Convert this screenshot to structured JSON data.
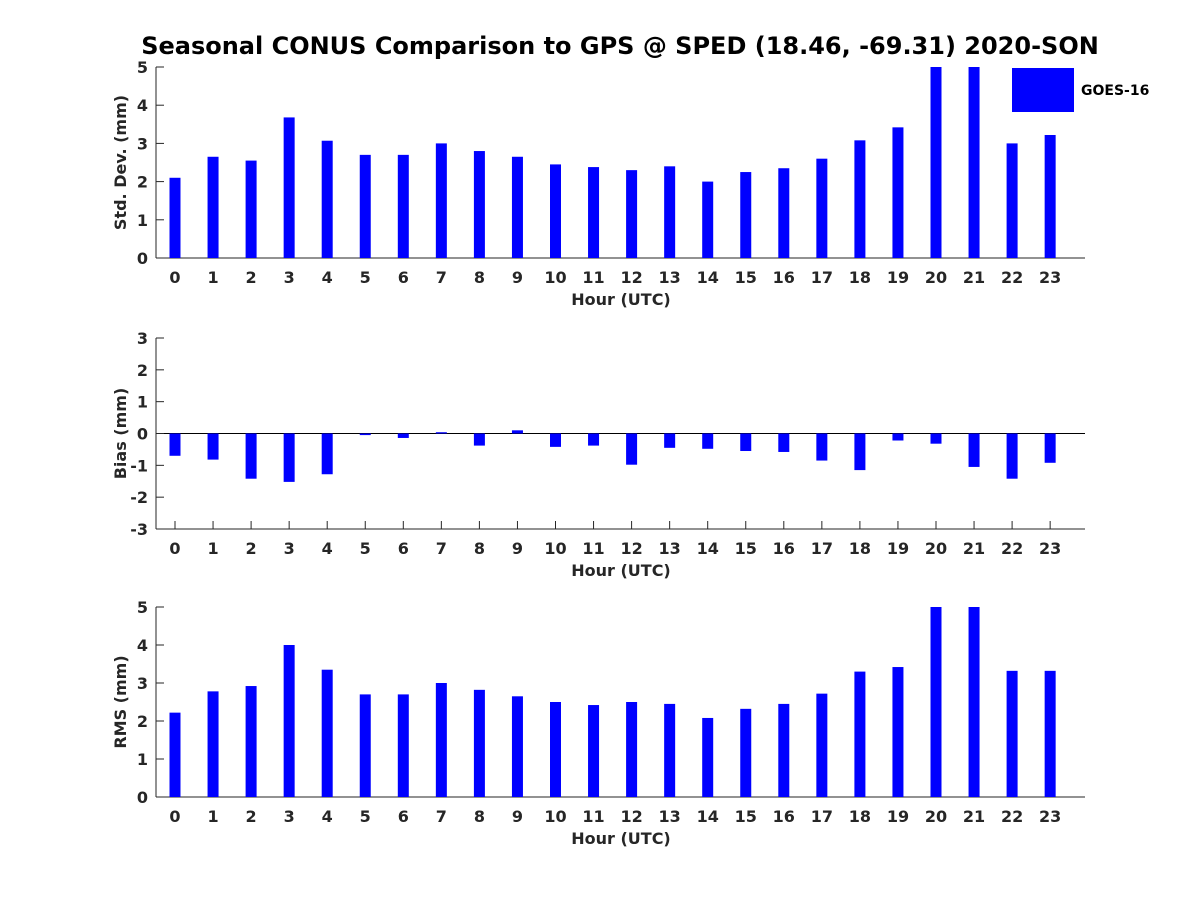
{
  "figure": {
    "title": "Seasonal CONUS Comparison to GPS @ SPED (18.46, -69.31) 2020-SON",
    "legend": {
      "label": "GOES-16",
      "color": "#0000ff",
      "placement": "top-right"
    }
  },
  "chart_data": [
    {
      "type": "bar",
      "categories": [
        "0",
        "1",
        "2",
        "3",
        "4",
        "5",
        "6",
        "7",
        "8",
        "9",
        "10",
        "11",
        "12",
        "13",
        "14",
        "15",
        "16",
        "17",
        "18",
        "19",
        "20",
        "21",
        "22",
        "23"
      ],
      "series": [
        {
          "name": "GOES-16",
          "color": "#0000ff",
          "values": [
            2.1,
            2.65,
            2.55,
            3.68,
            3.07,
            2.7,
            2.7,
            3.0,
            2.8,
            2.65,
            2.45,
            2.38,
            2.3,
            2.4,
            2.0,
            2.25,
            2.35,
            2.6,
            3.08,
            3.42,
            5.0,
            5.0,
            3.0,
            3.22
          ]
        }
      ],
      "xlabel": "Hour (UTC)",
      "ylabel": "Std. Dev. (mm)",
      "ylim": [
        0,
        5
      ],
      "yticks": [
        "0",
        "1",
        "2",
        "3",
        "4",
        "5"
      ],
      "grid": false
    },
    {
      "type": "bar",
      "categories": [
        "0",
        "1",
        "2",
        "3",
        "4",
        "5",
        "6",
        "7",
        "8",
        "9",
        "10",
        "11",
        "12",
        "13",
        "14",
        "15",
        "16",
        "17",
        "18",
        "19",
        "20",
        "21",
        "22",
        "23"
      ],
      "series": [
        {
          "name": "GOES-16",
          "color": "#0000ff",
          "values": [
            -0.7,
            -0.82,
            -1.42,
            -1.52,
            -1.28,
            -0.05,
            -0.14,
            0.04,
            -0.38,
            0.1,
            -0.42,
            -0.38,
            -0.98,
            -0.45,
            -0.48,
            -0.55,
            -0.58,
            -0.85,
            -1.15,
            -0.22,
            -0.32,
            -1.05,
            -1.42,
            -0.92
          ]
        }
      ],
      "xlabel": "Hour (UTC)",
      "ylabel": "Bias (mm)",
      "ylim": [
        -3,
        3
      ],
      "yticks": [
        "-3",
        "-2",
        "-1",
        "0",
        "1",
        "2",
        "3"
      ],
      "zero_line": true,
      "grid": false
    },
    {
      "type": "bar",
      "categories": [
        "0",
        "1",
        "2",
        "3",
        "4",
        "5",
        "6",
        "7",
        "8",
        "9",
        "10",
        "11",
        "12",
        "13",
        "14",
        "15",
        "16",
        "17",
        "18",
        "19",
        "20",
        "21",
        "22",
        "23"
      ],
      "series": [
        {
          "name": "GOES-16",
          "color": "#0000ff",
          "values": [
            2.22,
            2.78,
            2.92,
            4.0,
            3.35,
            2.7,
            2.7,
            3.0,
            2.82,
            2.65,
            2.5,
            2.42,
            2.5,
            2.45,
            2.08,
            2.32,
            2.45,
            2.72,
            3.3,
            3.42,
            5.0,
            5.0,
            3.32,
            3.32
          ]
        }
      ],
      "xlabel": "Hour (UTC)",
      "ylabel": "RMS (mm)",
      "ylim": [
        0,
        5
      ],
      "yticks": [
        "0",
        "1",
        "2",
        "3",
        "4",
        "5"
      ],
      "grid": false
    }
  ]
}
